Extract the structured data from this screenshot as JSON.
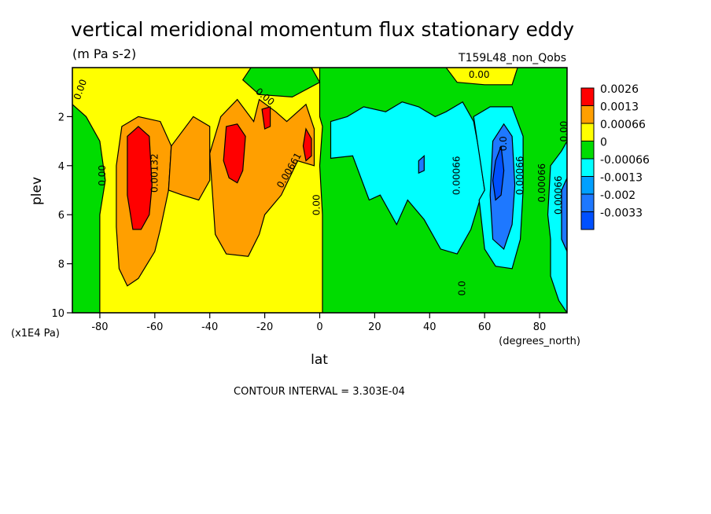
{
  "chart_data": {
    "type": "contour",
    "title": "vertical meridional momentum flux stationary eddy",
    "units": "(m Pa s-2)",
    "run_label": "T159L48_non_Qobs",
    "xlabel": "lat",
    "x_units": "(degrees_north)",
    "ylabel": "plev",
    "y_units": "(x1E4 Pa)",
    "xlim": [
      -90,
      90
    ],
    "ylim": [
      10,
      0
    ],
    "x_ticks": [
      -80,
      -60,
      -40,
      -20,
      0,
      20,
      40,
      60,
      80
    ],
    "x_tick_labels": [
      "-80",
      "-60",
      "-40",
      "-20",
      "0",
      "20",
      "40",
      "60",
      "80"
    ],
    "y_ticks": [
      2,
      4,
      6,
      8,
      10
    ],
    "y_tick_labels": [
      "2",
      "4",
      "6",
      "8",
      "10"
    ],
    "contour_interval_text": "CONTOUR INTERVAL = 3.303E-04",
    "legend": {
      "placement": "right",
      "levels": [
        {
          "label": "0.0026",
          "color": "#ff0000"
        },
        {
          "label": "0.0013",
          "color": "#ff9f00"
        },
        {
          "label": "0.00066",
          "color": "#ffff00"
        },
        {
          "label": "0",
          "color": "#00dc00"
        },
        {
          "label": "-0.00066",
          "color": "#00ffff"
        },
        {
          "label": "-0.0013",
          "color": "#00a0ff"
        },
        {
          "label": "-0.002",
          "color": "#1e78ff"
        },
        {
          "label": "-0.0033",
          "color": "#0050ff"
        }
      ]
    },
    "regions": [
      {
        "fill": "#00dc00",
        "points": [
          [
            -90,
            0
          ],
          [
            90,
            0
          ],
          [
            90,
            10
          ],
          [
            -90,
            10
          ]
        ]
      },
      {
        "fill": "#ffff00",
        "points": [
          [
            -90,
            0
          ],
          [
            -40,
            0
          ],
          [
            -20,
            0
          ],
          [
            -10,
            0
          ],
          [
            0,
            0
          ],
          [
            0,
            2
          ],
          [
            1,
            2.4
          ],
          [
            0,
            4
          ],
          [
            1,
            6
          ],
          [
            1,
            10
          ],
          [
            -80,
            10
          ],
          [
            -80,
            6
          ],
          [
            -78,
            4.6
          ],
          [
            -80,
            3
          ],
          [
            -85,
            2
          ],
          [
            -90,
            1.5
          ]
        ]
      },
      {
        "fill": "#00dc00",
        "points": [
          [
            -25,
            0
          ],
          [
            -3,
            0
          ],
          [
            0,
            0.6
          ],
          [
            -10,
            1.2
          ],
          [
            -22,
            1.1
          ],
          [
            -28,
            0.5
          ]
        ]
      },
      {
        "fill": "#ffff00",
        "points": [
          [
            46,
            0
          ],
          [
            62,
            0
          ],
          [
            72,
            0
          ],
          [
            70,
            0.7
          ],
          [
            60,
            0.7
          ],
          [
            50,
            0.6
          ]
        ]
      },
      {
        "fill": "#ff9f00",
        "points": [
          [
            -72,
            2.4
          ],
          [
            -66,
            2
          ],
          [
            -58,
            2.2
          ],
          [
            -54,
            3.2
          ],
          [
            -55,
            5
          ],
          [
            -58,
            6.6
          ],
          [
            -60,
            7.5
          ],
          [
            -66,
            8.6
          ],
          [
            -70,
            8.9
          ],
          [
            -73,
            8.2
          ],
          [
            -74,
            6.5
          ],
          [
            -74,
            4
          ]
        ]
      },
      {
        "fill": "#ff9f00",
        "points": [
          [
            -54,
            3.2
          ],
          [
            -46,
            2
          ],
          [
            -40,
            2.4
          ],
          [
            -40,
            4.6
          ],
          [
            -44,
            5.4
          ],
          [
            -50,
            5.2
          ],
          [
            -55,
            5
          ]
        ]
      },
      {
        "fill": "#ff9f00",
        "points": [
          [
            -40,
            3.5
          ],
          [
            -36,
            2
          ],
          [
            -30,
            1.3
          ],
          [
            -24,
            2.2
          ],
          [
            -22,
            1.3
          ],
          [
            -16,
            1.8
          ],
          [
            -12,
            2.2
          ],
          [
            -5,
            1.5
          ],
          [
            -2,
            2.5
          ],
          [
            -2,
            4
          ],
          [
            -8,
            3.8
          ],
          [
            -14,
            5.2
          ],
          [
            -20,
            6
          ],
          [
            -22,
            6.8
          ],
          [
            -26,
            7.7
          ],
          [
            -34,
            7.6
          ],
          [
            -38,
            6.8
          ]
        ]
      },
      {
        "fill": "#ff0000",
        "points": [
          [
            -70,
            2.8
          ],
          [
            -66,
            2.4
          ],
          [
            -62,
            2.8
          ],
          [
            -61,
            4.8
          ],
          [
            -62,
            6
          ],
          [
            -65,
            6.6
          ],
          [
            -68,
            6.6
          ],
          [
            -70,
            5.2
          ]
        ]
      },
      {
        "fill": "#ff0000",
        "points": [
          [
            -34,
            2.4
          ],
          [
            -30,
            2.3
          ],
          [
            -27,
            2.8
          ],
          [
            -28,
            4.2
          ],
          [
            -30,
            4.7
          ],
          [
            -33,
            4.5
          ],
          [
            -35,
            3.8
          ]
        ]
      },
      {
        "fill": "#ff0000",
        "points": [
          [
            -21,
            1.7
          ],
          [
            -18,
            1.6
          ],
          [
            -18,
            2.4
          ],
          [
            -20,
            2.5
          ]
        ]
      },
      {
        "fill": "#ff0000",
        "points": [
          [
            -5,
            2.5
          ],
          [
            -3,
            2.9
          ],
          [
            -3,
            3.6
          ],
          [
            -5,
            3.8
          ],
          [
            -6,
            3.2
          ]
        ]
      },
      {
        "fill": "#00ffff",
        "points": [
          [
            4,
            2.2
          ],
          [
            10,
            2
          ],
          [
            16,
            1.6
          ],
          [
            24,
            1.8
          ],
          [
            30,
            1.4
          ],
          [
            36,
            1.6
          ],
          [
            42,
            2
          ],
          [
            46,
            1.8
          ],
          [
            52,
            1.4
          ],
          [
            56,
            2.2
          ],
          [
            58,
            3.4
          ],
          [
            60,
            5
          ],
          [
            58,
            5.5
          ],
          [
            55,
            6.6
          ],
          [
            50,
            7.6
          ],
          [
            44,
            7.4
          ],
          [
            38,
            6.2
          ],
          [
            32,
            5.4
          ],
          [
            28,
            6.4
          ],
          [
            22,
            5.2
          ],
          [
            18,
            5.4
          ],
          [
            12,
            3.6
          ],
          [
            4,
            3.7
          ]
        ]
      },
      {
        "fill": "#00ffff",
        "points": [
          [
            56,
            2
          ],
          [
            62,
            1.6
          ],
          [
            70,
            1.6
          ],
          [
            74,
            2.8
          ],
          [
            74,
            5
          ],
          [
            73,
            7
          ],
          [
            70,
            8.2
          ],
          [
            64,
            8.1
          ],
          [
            60,
            7.4
          ],
          [
            58,
            5.4
          ],
          [
            60,
            5
          ]
        ]
      },
      {
        "fill": "#00ffff",
        "points": [
          [
            84,
            4
          ],
          [
            88,
            3.4
          ],
          [
            90,
            3
          ],
          [
            90,
            10
          ],
          [
            87,
            9.5
          ],
          [
            84,
            8.5
          ],
          [
            84,
            7
          ],
          [
            83,
            6
          ]
        ]
      },
      {
        "fill": "#1e78ff",
        "points": [
          [
            63,
            3
          ],
          [
            67,
            2.3
          ],
          [
            70,
            2.8
          ],
          [
            71,
            4.8
          ],
          [
            70,
            6.4
          ],
          [
            67,
            7.4
          ],
          [
            63,
            7
          ],
          [
            62,
            5.2
          ]
        ]
      },
      {
        "fill": "#1e78ff",
        "points": [
          [
            88,
            5
          ],
          [
            90,
            4.5
          ],
          [
            90,
            7.5
          ],
          [
            88,
            7
          ]
        ]
      },
      {
        "fill": "#1e78ff",
        "points": [
          [
            36,
            3.8
          ],
          [
            38,
            3.6
          ],
          [
            38,
            4.2
          ],
          [
            36,
            4.3
          ]
        ]
      },
      {
        "fill": "#0050ff",
        "points": [
          [
            64,
            3.8
          ],
          [
            66,
            3.2
          ],
          [
            67,
            4.2
          ],
          [
            66,
            5.2
          ],
          [
            64,
            5.4
          ],
          [
            63,
            4.6
          ]
        ]
      }
    ],
    "contour_labels": [
      {
        "text": "0.00",
        "x": -87,
        "y": 0.9,
        "angle": -70
      },
      {
        "text": "0.00",
        "x": -79,
        "y": 4.4,
        "angle": -90
      },
      {
        "text": "0.00132",
        "x": -60,
        "y": 4.3,
        "angle": -90
      },
      {
        "text": "0.00",
        "x": -20,
        "y": 1.2,
        "angle": 40
      },
      {
        "text": "0.00661",
        "x": -11,
        "y": 4.2,
        "angle": -60
      },
      {
        "text": "0.00",
        "x": -1,
        "y": 5.6,
        "angle": -90
      },
      {
        "text": "0.00",
        "x": 58,
        "y": 0.3,
        "angle": 0
      },
      {
        "text": "0.00066",
        "x": 50,
        "y": 4.4,
        "angle": -90
      },
      {
        "text": "0.0",
        "x": 67,
        "y": 3.1,
        "angle": -90
      },
      {
        "text": "0.00066",
        "x": 73,
        "y": 4.4,
        "angle": -90
      },
      {
        "text": "0.00066",
        "x": 81,
        "y": 4.7,
        "angle": -90
      },
      {
        "text": "0.00066",
        "x": 87,
        "y": 5.2,
        "angle": -90
      },
      {
        "text": "0.00",
        "x": 89,
        "y": 2.6,
        "angle": -90
      },
      {
        "text": "0.0",
        "x": 52,
        "y": 9.0,
        "angle": -90
      }
    ]
  }
}
